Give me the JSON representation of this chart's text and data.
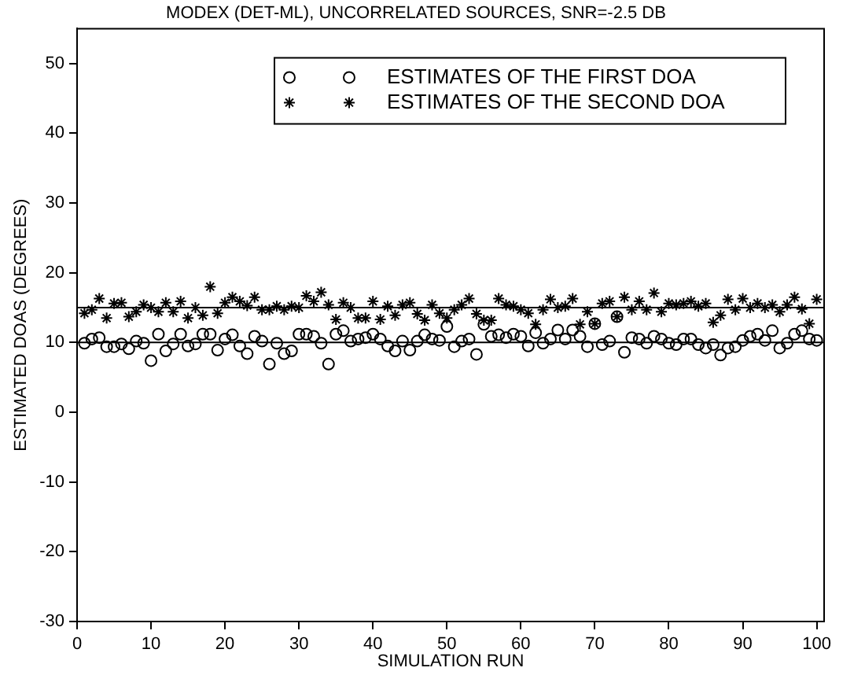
{
  "chart_data": {
    "type": "scatter",
    "title": "MODEX (DET-ML), UNCORRELATED SOURCES, SNR=-2.5 DB",
    "xlabel": "SIMULATION RUN",
    "ylabel": "ESTIMATED DOAS (DEGREES)",
    "x": [
      1,
      2,
      3,
      4,
      5,
      6,
      7,
      8,
      9,
      10,
      11,
      12,
      13,
      14,
      15,
      16,
      17,
      18,
      19,
      20,
      21,
      22,
      23,
      24,
      25,
      26,
      27,
      28,
      29,
      30,
      31,
      32,
      33,
      34,
      35,
      36,
      37,
      38,
      39,
      40,
      41,
      42,
      43,
      44,
      45,
      46,
      47,
      48,
      49,
      50,
      51,
      52,
      53,
      54,
      55,
      56,
      57,
      58,
      59,
      60,
      61,
      62,
      63,
      64,
      65,
      66,
      67,
      68,
      69,
      70,
      71,
      72,
      73,
      74,
      75,
      76,
      77,
      78,
      79,
      80,
      81,
      82,
      83,
      84,
      85,
      86,
      87,
      88,
      89,
      90,
      91,
      92,
      93,
      94,
      95,
      96,
      97,
      98,
      99,
      100
    ],
    "series": [
      {
        "name": "ESTIMATES OF THE FIRST DOA",
        "color": "#000000",
        "marker": "circle",
        "values": [
          9.9,
          10.5,
          10.7,
          9.4,
          9.4,
          9.8,
          9.1,
          10.2,
          9.9,
          7.4,
          11.2,
          8.8,
          9.8,
          11.2,
          9.5,
          9.8,
          11.2,
          11.2,
          8.9,
          10.5,
          11.1,
          9.5,
          8.4,
          10.9,
          10.2,
          6.9,
          9.9,
          8.4,
          8.8,
          11.2,
          11.2,
          10.9,
          9.9,
          6.9,
          11.2,
          11.7,
          10.2,
          10.5,
          10.7,
          11.2,
          10.5,
          9.5,
          8.8,
          10.2,
          8.9,
          10.2,
          11.1,
          10.5,
          10.3,
          12.3,
          9.4,
          10.2,
          10.5,
          8.3,
          12.6,
          10.9,
          11.1,
          10.7,
          11.2,
          10.9,
          9.5,
          11.4,
          9.9,
          10.5,
          11.8,
          10.5,
          11.8,
          10.9,
          9.4,
          12.7,
          9.7,
          10.2,
          13.7,
          8.6,
          10.7,
          10.5,
          9.9,
          10.9,
          10.5,
          9.9,
          9.7,
          10.5,
          10.5,
          9.7,
          9.2,
          9.7,
          8.2,
          9.2,
          9.4,
          10.3,
          10.9,
          11.2,
          10.3,
          11.7,
          9.2,
          9.9,
          11.2,
          11.7,
          10.5,
          10.3
        ]
      },
      {
        "name": "ESTIMATES OF THE SECOND DOA",
        "color": "#000000",
        "marker": "cross",
        "values": [
          14.2,
          14.7,
          16.3,
          13.5,
          15.6,
          15.7,
          13.7,
          14.4,
          15.4,
          15.0,
          14.4,
          15.7,
          14.4,
          15.9,
          13.5,
          15.0,
          13.9,
          18.0,
          14.2,
          15.7,
          16.5,
          15.9,
          15.3,
          16.5,
          14.7,
          14.7,
          15.2,
          14.7,
          15.2,
          15.0,
          16.7,
          15.9,
          17.2,
          15.4,
          13.3,
          15.7,
          15.0,
          13.5,
          13.5,
          15.9,
          13.3,
          15.2,
          13.9,
          15.4,
          15.7,
          14.1,
          13.2,
          15.4,
          14.2,
          13.5,
          14.7,
          15.4,
          16.3,
          14.1,
          13.2,
          13.2,
          16.3,
          15.4,
          15.2,
          14.7,
          14.2,
          12.6,
          14.7,
          16.2,
          15.0,
          15.2,
          16.3,
          12.6,
          14.4,
          12.7,
          15.6,
          15.9,
          13.7,
          16.5,
          14.7,
          15.9,
          14.7,
          17.1,
          14.4,
          15.6,
          15.4,
          15.6,
          15.9,
          15.2,
          15.6,
          12.9,
          13.9,
          16.2,
          14.7,
          16.3,
          15.0,
          15.6,
          15.0,
          15.4,
          14.4,
          15.4,
          16.5,
          14.8,
          12.7,
          16.2
        ]
      }
    ],
    "xlim": [
      0,
      101
    ],
    "xticks": [
      0,
      10,
      20,
      30,
      40,
      50,
      60,
      70,
      80,
      90,
      100
    ],
    "ylim": [
      -30,
      55
    ],
    "yticks": [
      -30,
      -20,
      -10,
      0,
      10,
      20,
      30,
      40,
      50
    ],
    "ref_lines": [
      {
        "axis": "y",
        "value": 10,
        "color": "#000000"
      },
      {
        "axis": "y",
        "value": 15,
        "color": "#000000"
      }
    ],
    "grid": false,
    "legend": "top right"
  }
}
